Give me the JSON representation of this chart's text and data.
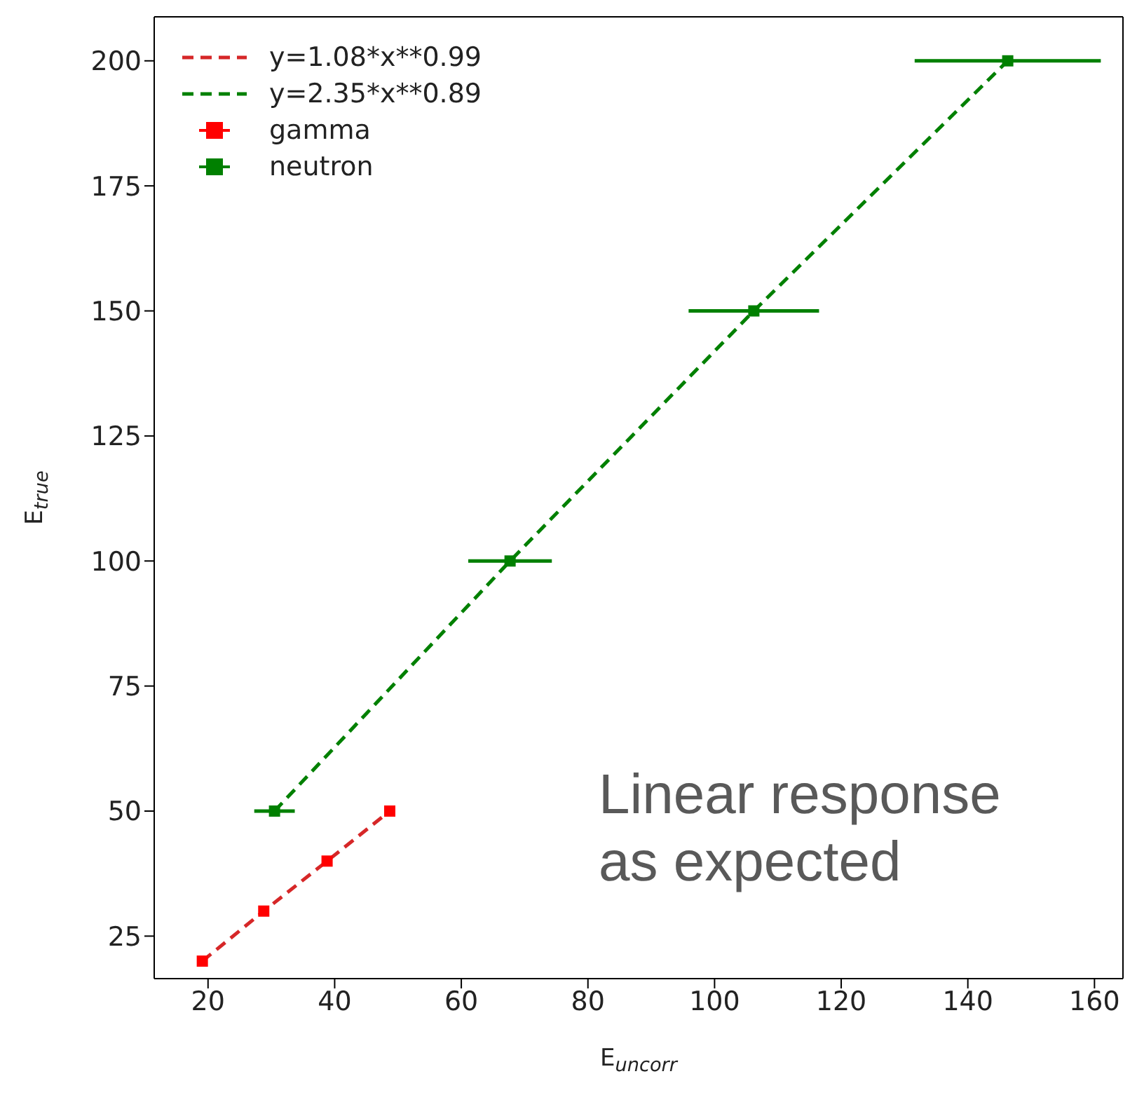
{
  "chart_data": {
    "type": "scatter",
    "xlabel": "E$_{uncorr}$",
    "ylabel": "E$_{true}$",
    "xlim": [
      11.5,
      164.5
    ],
    "xticks": [
      20,
      40,
      60,
      80,
      100,
      120,
      140,
      160
    ],
    "ylim": [
      16.5,
      208.8
    ],
    "yticks": [
      25,
      50,
      75,
      100,
      125,
      150,
      175,
      200
    ],
    "grid": false,
    "legend": "top left",
    "annotations": [
      "Linear response as expected"
    ],
    "series": [
      {
        "name": "y=1.08*x**0.99",
        "type": "line",
        "line_style": "dashed",
        "marker": "none",
        "color": "#d62728",
        "x": [
          19.1,
          28.8,
          38.8,
          48.7
        ],
        "values": [
          20,
          30,
          40,
          50
        ]
      },
      {
        "name": "y=2.35*x**0.89",
        "type": "line",
        "line_style": "dashed",
        "marker": "none",
        "color": "#008000",
        "x": [
          30.5,
          67.7,
          106.2,
          146.3
        ],
        "values": [
          50,
          100,
          150,
          200
        ]
      },
      {
        "name": "gamma",
        "type": "scatter",
        "marker": "square",
        "color": "#ff0000",
        "x": [
          19.1,
          28.8,
          38.8,
          48.7
        ],
        "values": [
          20,
          30,
          40,
          50
        ]
      },
      {
        "name": "neutron",
        "type": "scatter",
        "marker": "square",
        "color": "#008000",
        "x": [
          30.5,
          67.7,
          106.2,
          146.3
        ],
        "values": [
          50,
          100,
          150,
          200
        ],
        "xerrors": [
          3.2,
          6.6,
          10.3,
          14.7
        ]
      }
    ]
  }
}
